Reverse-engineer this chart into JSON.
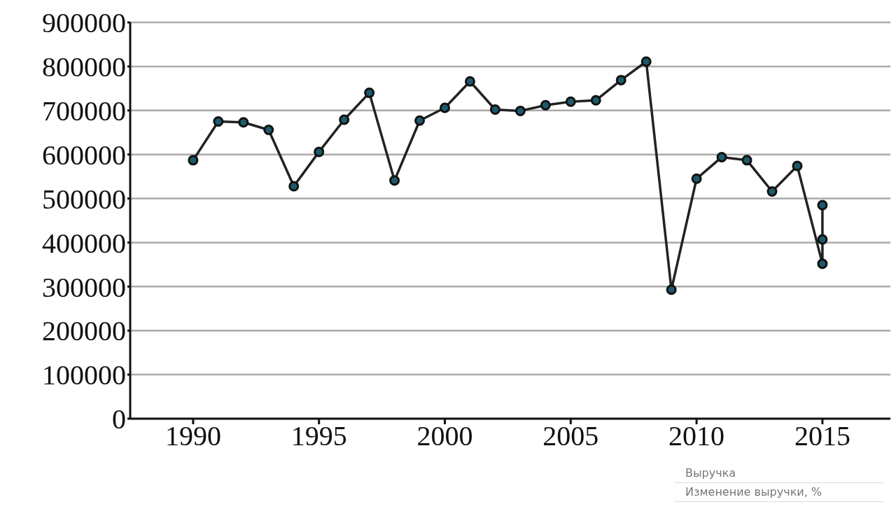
{
  "chart_data": {
    "type": "line",
    "x": [
      1990,
      1991,
      1992,
      1993,
      1994,
      1995,
      1996,
      1997,
      1998,
      1999,
      2000,
      2001,
      2002,
      2003,
      2004,
      2005,
      2006,
      2007,
      2008,
      2009,
      2010,
      2011,
      2012,
      2013,
      2014,
      2015,
      2015,
      2015
    ],
    "series": [
      {
        "color": "#222222",
        "values": [
          587000,
          675000,
          673000,
          656000,
          528000,
          606000,
          679000,
          740000,
          541000,
          677000,
          706000,
          766000,
          702000,
          699000,
          712000,
          720000,
          723000,
          769000,
          811000,
          293000,
          545000,
          594000,
          587000,
          516000,
          574000,
          352000,
          407000,
          485000
        ]
      }
    ],
    "xlim": [
      1987.5,
      2017.7
    ],
    "xticks": [
      1990,
      1995,
      2000,
      2005,
      2010,
      2015
    ],
    "ylim": [
      0,
      900000
    ],
    "yticks": [
      0,
      100000,
      200000,
      300000,
      400000,
      500000,
      600000,
      700000,
      800000,
      900000
    ],
    "grid": "y",
    "marker": "circle",
    "line_style": "solid",
    "annotations": [
      "Выручка",
      "Изменение выручки, %"
    ]
  }
}
